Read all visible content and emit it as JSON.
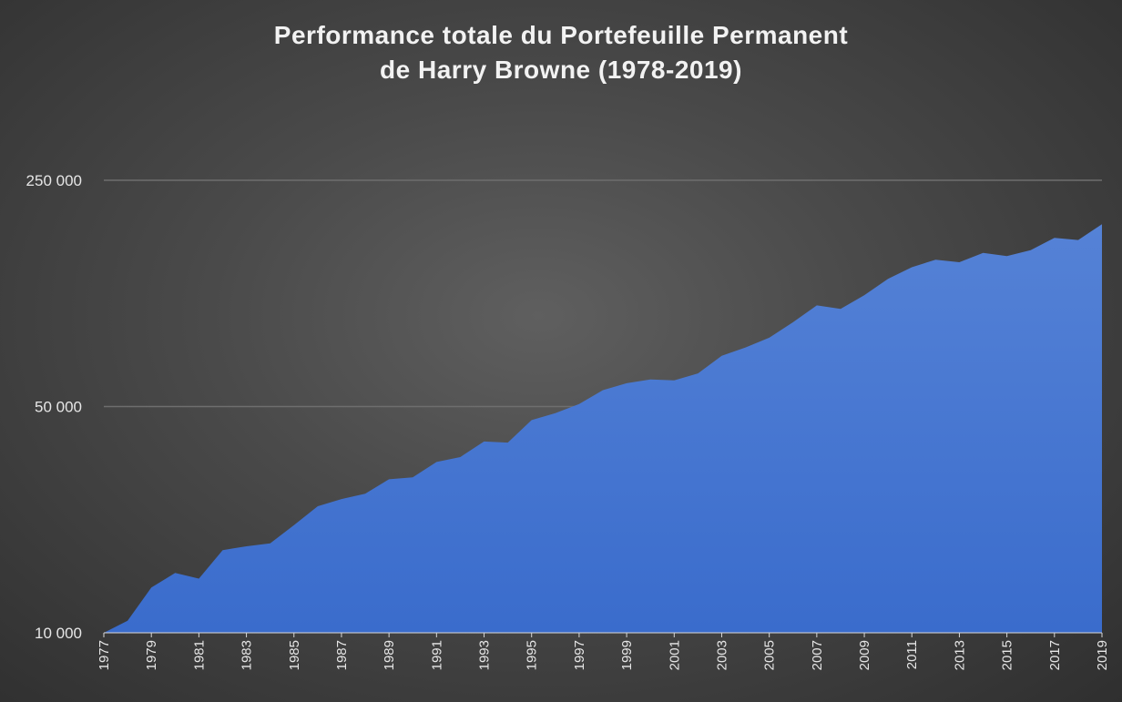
{
  "chart_data": {
    "type": "area",
    "title": "Performance totale du Portefeuille Permanent\nde Harry Browne (1978-2019)",
    "title_lines": [
      "Performance totale du Portefeuille Permanent",
      "de Harry Browne (1978-2019)"
    ],
    "xlabel": "",
    "ylabel": "",
    "yscale": "log",
    "ylim": [
      10000,
      280000
    ],
    "xlim": [
      1977,
      2019
    ],
    "grid": true,
    "legend": "none",
    "y_ticks": [
      10000,
      50000,
      250000
    ],
    "y_tick_labels": [
      "10 000",
      "50 000",
      "250 000"
    ],
    "x_tick_labels": [
      "1977",
      "1979",
      "1981",
      "1983",
      "1985",
      "1987",
      "1989",
      "1991",
      "1993",
      "1995",
      "1997",
      "1999",
      "2001",
      "2003",
      "2005",
      "2007",
      "2009",
      "2011",
      "2013",
      "2015",
      "2017",
      "2019"
    ],
    "x": [
      1977,
      1978,
      1979,
      1980,
      1981,
      1982,
      1983,
      1984,
      1985,
      1986,
      1987,
      1988,
      1989,
      1990,
      1991,
      1992,
      1993,
      1994,
      1995,
      1996,
      1997,
      1998,
      1999,
      2000,
      2001,
      2002,
      2003,
      2004,
      2005,
      2006,
      2007,
      2008,
      2009,
      2010,
      2011,
      2012,
      2013,
      2014,
      2015,
      2016,
      2017,
      2018,
      2019
    ],
    "values": [
      10000,
      10900,
      13800,
      15300,
      14700,
      18000,
      18500,
      18900,
      21500,
      24600,
      25900,
      26900,
      29800,
      30200,
      33700,
      34900,
      39000,
      38700,
      45400,
      47700,
      50900,
      56200,
      59000,
      60600,
      60200,
      63300,
      71700,
      76100,
      81600,
      91100,
      102700,
      100100,
      110300,
      124000,
      134700,
      142100,
      139600,
      149100,
      145900,
      152100,
      165900,
      163500,
      183000
    ],
    "colors": {
      "area": "#3a6ccc",
      "area_top": "#5582d6",
      "grid": "#6e6e6e",
      "background": "#3c3c3c"
    }
  }
}
